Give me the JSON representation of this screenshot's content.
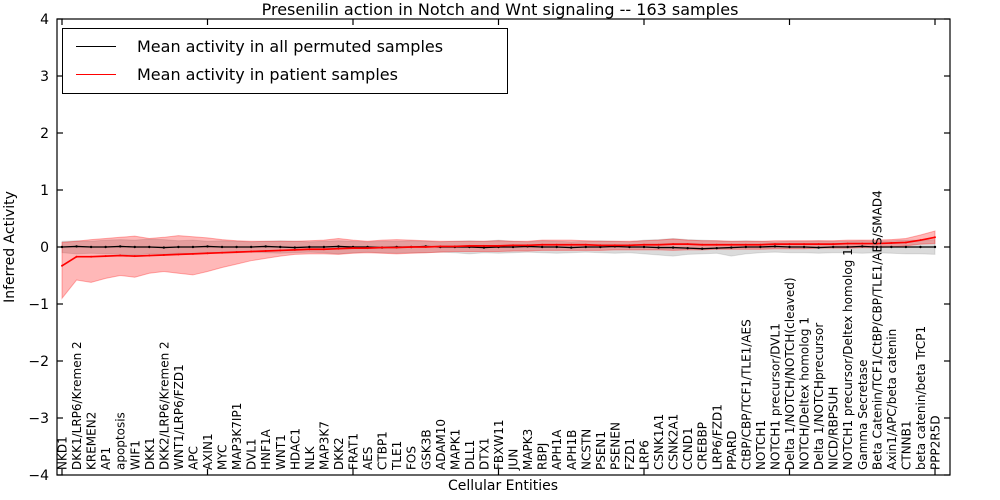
{
  "figure": {
    "title": "Presenilin action in Notch and Wnt signaling -- 163 samples",
    "xlabel": "Cellular Entities",
    "ylabel": "Inferred Activity"
  },
  "legend": {
    "items": [
      {
        "label": "Mean activity in all permuted samples",
        "color": "#000000"
      },
      {
        "label": "Mean activity in patient samples",
        "color": "#ff0000"
      }
    ]
  },
  "chart_data": {
    "type": "line",
    "title": "Presenilin action in Notch and Wnt signaling -- 163 samples",
    "xlabel": "Cellular Entities",
    "ylabel": "Inferred Activity",
    "ylim": [
      -4,
      4
    ],
    "yticks": [
      -4,
      -3,
      -2,
      -1,
      0,
      1,
      2,
      3,
      4
    ],
    "grid": false,
    "legend_position": "upper left",
    "categories": [
      "NKD1",
      "DKK1/LRP6/Kremen 2",
      "KREMEN2",
      "AP1",
      "apoptosis",
      "WIF1",
      "DKK1",
      "DKK2/LRP6/Kremen 2",
      "WNT1/LRP6/FZD1",
      "APC",
      "AXIN1",
      "MYC",
      "MAP3K7IP1",
      "DVL1",
      "HNF1A",
      "WNT1",
      "HDAC1",
      "NLK",
      "MAP3K7",
      "DKK2",
      "FRAT1",
      "AES",
      "CTBP1",
      "TLE1",
      "FOS",
      "GSK3B",
      "ADAM10",
      "MAPK1",
      "DLL1",
      "DTX1",
      "FBXW11",
      "JUN",
      "MAPK3",
      "RBPJ",
      "APH1A",
      "APH1B",
      "NCSTN",
      "PSEN1",
      "PSENEN",
      "FZD1",
      "LRP6",
      "CSNK1A1",
      "CSNK2A1",
      "CCND1",
      "CREBBP",
      "LRP6/FZD1",
      "PPARD",
      "CtBP/CBP/TCF1/TLE1/AES",
      "NOTCH1",
      "NOTCH1 precursor/DVL1",
      "Delta 1/NOTCH/NOTCH(cleaved)",
      "NOTCH/Deltex homolog 1",
      "Delta 1/NOTCHprecursor",
      "NICD/RBPSUH",
      "NOTCH1 precursor/Deltex homolog 1",
      "Gamma Secretase",
      "Beta Catenin/TCF1/CtBP/CBP/TLE1/AES/SMAD4",
      "Axin1/APC/beta catenin",
      "CTNNB1",
      "beta catenin/beta TrCP1",
      "PPP2R5D"
    ],
    "series": [
      {
        "name": "Mean activity in all permuted samples",
        "color": "#000000",
        "line_width": 1.3,
        "marker_r": 1.2,
        "band_fill": "rgba(0,0,0,0.14)",
        "band_edge": "rgba(0,0,0,0.10)",
        "values": [
          0.0,
          0.01,
          0.0,
          0.0,
          0.01,
          0.0,
          0.0,
          -0.01,
          0.0,
          0.0,
          0.01,
          0.0,
          0.0,
          0.0,
          0.01,
          0.0,
          -0.01,
          0.0,
          0.0,
          0.01,
          0.0,
          0.0,
          -0.01,
          0.0,
          0.0,
          0.01,
          0.0,
          0.0,
          0.0,
          -0.01,
          0.0,
          0.0,
          0.01,
          0.0,
          0.0,
          -0.01,
          0.0,
          0.0,
          0.01,
          0.0,
          0.0,
          -0.01,
          -0.01,
          -0.02,
          -0.03,
          -0.02,
          -0.01,
          0.0,
          0.0,
          0.01,
          0.0,
          0.0,
          -0.01,
          0.0,
          0.0,
          0.01,
          0.0,
          0.0,
          0.0,
          0.0,
          0.0
        ],
        "band_upper": [
          0.1,
          0.11,
          0.1,
          0.12,
          0.13,
          0.12,
          0.14,
          0.13,
          0.11,
          0.12,
          0.1,
          0.11,
          0.1,
          0.09,
          0.1,
          0.11,
          0.1,
          0.09,
          0.1,
          0.11,
          0.1,
          0.09,
          0.1,
          0.1,
          0.11,
          0.1,
          0.09,
          0.1,
          0.11,
          0.1,
          0.12,
          0.1,
          0.09,
          0.11,
          0.1,
          0.09,
          0.1,
          0.11,
          0.1,
          0.09,
          0.12,
          0.13,
          0.15,
          0.13,
          0.12,
          0.11,
          0.1,
          0.11,
          0.1,
          0.09,
          0.1,
          0.1,
          0.11,
          0.1,
          0.1,
          0.11,
          0.1,
          0.11,
          0.12,
          0.12,
          0.13
        ],
        "band_lower": [
          -0.1,
          -0.12,
          -0.11,
          -0.12,
          -0.13,
          -0.14,
          -0.12,
          -0.13,
          -0.11,
          -0.12,
          -0.1,
          -0.11,
          -0.1,
          -0.09,
          -0.1,
          -0.11,
          -0.1,
          -0.09,
          -0.1,
          -0.12,
          -0.1,
          -0.09,
          -0.1,
          -0.11,
          -0.1,
          -0.1,
          -0.09,
          -0.1,
          -0.12,
          -0.1,
          -0.11,
          -0.1,
          -0.09,
          -0.1,
          -0.11,
          -0.1,
          -0.09,
          -0.1,
          -0.11,
          -0.1,
          -0.12,
          -0.14,
          -0.16,
          -0.13,
          -0.12,
          -0.11,
          -0.16,
          -0.12,
          -0.1,
          -0.09,
          -0.1,
          -0.1,
          -0.11,
          -0.1,
          -0.1,
          -0.11,
          -0.1,
          -0.11,
          -0.12,
          -0.12,
          -0.13
        ]
      },
      {
        "name": "Mean activity in patient samples",
        "color": "#ff0000",
        "line_width": 1.7,
        "marker_r": 1.0,
        "band_fill": "rgba(255,0,0,0.28)",
        "band_edge": "rgba(255,0,0,0.30)",
        "values": [
          -0.33,
          -0.17,
          -0.17,
          -0.16,
          -0.15,
          -0.16,
          -0.15,
          -0.14,
          -0.13,
          -0.12,
          -0.11,
          -0.1,
          -0.09,
          -0.08,
          -0.07,
          -0.06,
          -0.05,
          -0.04,
          -0.04,
          -0.03,
          -0.02,
          -0.02,
          -0.01,
          -0.01,
          0.0,
          0.0,
          0.01,
          0.01,
          0.02,
          0.02,
          0.02,
          0.03,
          0.03,
          0.04,
          0.04,
          0.04,
          0.04,
          0.03,
          0.03,
          0.03,
          0.04,
          0.04,
          0.05,
          0.05,
          0.04,
          0.04,
          0.04,
          0.04,
          0.04,
          0.05,
          0.05,
          0.05,
          0.05,
          0.05,
          0.06,
          0.06,
          0.06,
          0.07,
          0.08,
          0.12,
          0.17
        ],
        "band_upper": [
          0.08,
          0.1,
          0.13,
          0.15,
          0.17,
          0.19,
          0.15,
          0.17,
          0.2,
          0.18,
          0.16,
          0.13,
          0.11,
          0.1,
          0.1,
          0.1,
          0.1,
          0.11,
          0.12,
          0.15,
          0.12,
          0.1,
          0.12,
          0.13,
          0.12,
          0.11,
          0.1,
          0.1,
          0.1,
          0.1,
          0.11,
          0.1,
          0.1,
          0.12,
          0.12,
          0.12,
          0.11,
          0.1,
          0.1,
          0.1,
          0.11,
          0.12,
          0.14,
          0.12,
          0.11,
          0.11,
          0.1,
          0.1,
          0.1,
          0.11,
          0.11,
          0.11,
          0.11,
          0.11,
          0.12,
          0.12,
          0.12,
          0.13,
          0.15,
          0.21,
          0.28
        ],
        "band_lower": [
          -0.9,
          -0.58,
          -0.62,
          -0.55,
          -0.5,
          -0.53,
          -0.46,
          -0.43,
          -0.46,
          -0.49,
          -0.43,
          -0.36,
          -0.3,
          -0.24,
          -0.2,
          -0.16,
          -0.13,
          -0.12,
          -0.12,
          -0.13,
          -0.11,
          -0.1,
          -0.11,
          -0.12,
          -0.11,
          -0.1,
          -0.09,
          -0.08,
          -0.08,
          -0.08,
          -0.08,
          -0.07,
          -0.07,
          -0.06,
          -0.06,
          -0.06,
          -0.06,
          -0.06,
          -0.05,
          -0.05,
          -0.05,
          -0.05,
          -0.06,
          -0.05,
          -0.05,
          -0.04,
          -0.04,
          -0.04,
          -0.04,
          -0.03,
          -0.03,
          -0.03,
          -0.02,
          -0.02,
          -0.02,
          -0.01,
          -0.01,
          0.0,
          0.02,
          0.05,
          0.06
        ]
      }
    ]
  }
}
